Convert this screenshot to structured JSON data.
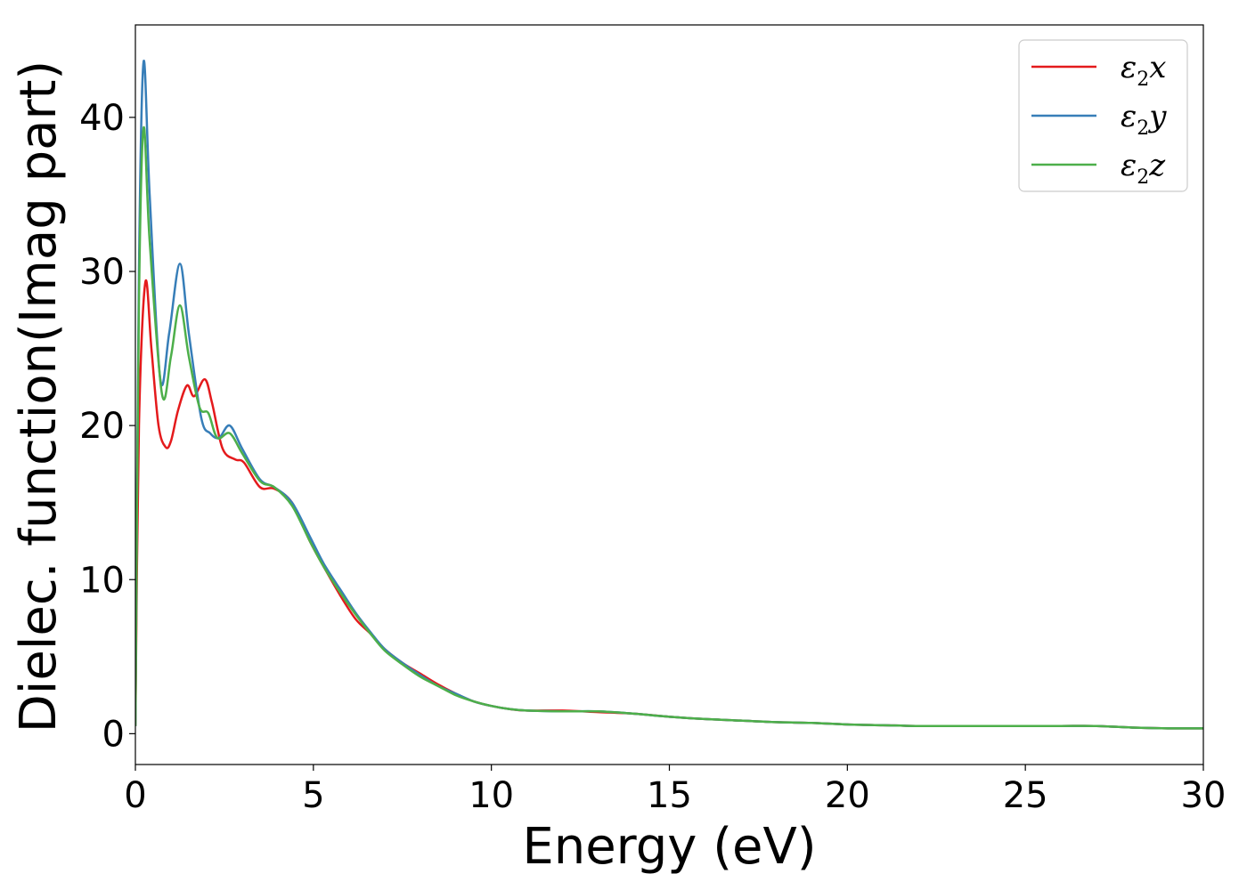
{
  "chart_data": {
    "type": "line",
    "title": "",
    "xlabel": "Energy (eV)",
    "ylabel": "Dielec. function(Imag part)",
    "xlim": [
      0,
      30
    ],
    "ylim": [
      -2,
      46
    ],
    "xticks": [
      0,
      5,
      10,
      15,
      20,
      25,
      30
    ],
    "yticks": [
      0,
      10,
      20,
      30,
      40
    ],
    "xtick_labels": [
      "0",
      "5",
      "10",
      "15",
      "20",
      "25",
      "30"
    ],
    "ytick_labels": [
      "0",
      "10",
      "20",
      "30",
      "40"
    ],
    "grid": false,
    "legend_position": "top-right",
    "series": [
      {
        "name": "ε2x",
        "legend_base": "ε",
        "legend_sub": "2",
        "legend_var": "x",
        "color": "#e41a1c",
        "x": [
          0.0,
          0.1,
          0.28,
          0.45,
          0.65,
          0.85,
          1.0,
          1.2,
          1.45,
          1.65,
          1.95,
          2.15,
          2.45,
          2.8,
          3.05,
          3.5,
          3.9,
          4.4,
          4.9,
          5.3,
          5.8,
          6.2,
          6.6,
          7.0,
          7.5,
          8.0,
          8.5,
          9.0,
          9.5,
          10.0,
          10.5,
          11.0,
          12.0,
          13.0,
          14.0,
          15.0,
          16.0,
          17.0,
          18.0,
          19.0,
          20.0,
          21.0,
          22.0,
          23.0,
          24.0,
          25.0,
          26.0,
          27.0,
          28.0,
          29.0,
          30.0
        ],
        "values": [
          0.5,
          20,
          29.3,
          25.0,
          20.0,
          18.6,
          19.0,
          21.0,
          22.6,
          21.9,
          23.0,
          21.5,
          18.5,
          17.8,
          17.6,
          16.0,
          15.9,
          15.0,
          12.5,
          10.8,
          8.8,
          7.4,
          6.5,
          5.5,
          4.6,
          3.9,
          3.2,
          2.6,
          2.1,
          1.8,
          1.6,
          1.5,
          1.5,
          1.4,
          1.3,
          1.1,
          0.95,
          0.85,
          0.75,
          0.7,
          0.6,
          0.55,
          0.5,
          0.5,
          0.5,
          0.5,
          0.5,
          0.5,
          0.4,
          0.35,
          0.35
        ]
      },
      {
        "name": "ε2y",
        "legend_base": "ε",
        "legend_sub": "2",
        "legend_var": "y",
        "color": "#377eb8",
        "x": [
          0.0,
          0.1,
          0.23,
          0.4,
          0.7,
          0.95,
          1.25,
          1.5,
          1.85,
          2.1,
          2.35,
          2.65,
          3.0,
          3.5,
          3.9,
          4.4,
          4.9,
          5.3,
          5.8,
          6.2,
          6.6,
          7.0,
          7.5,
          8.0,
          8.5,
          9.0,
          9.5,
          10.0,
          10.5,
          11.0,
          12.0,
          13.0,
          14.0,
          15.0,
          16.0,
          17.0,
          18.0,
          19.0,
          20.0,
          21.0,
          22.0,
          23.0,
          24.0,
          25.0,
          26.0,
          27.0,
          28.0,
          29.0,
          30.0
        ],
        "values": [
          0.5,
          30,
          43.6,
          35.0,
          23.0,
          26.0,
          30.5,
          26.0,
          20.5,
          19.5,
          19.2,
          20.0,
          18.5,
          16.5,
          16.0,
          15.0,
          12.8,
          11.0,
          9.2,
          7.8,
          6.6,
          5.5,
          4.6,
          3.8,
          3.1,
          2.6,
          2.1,
          1.8,
          1.6,
          1.5,
          1.45,
          1.45,
          1.3,
          1.1,
          0.95,
          0.85,
          0.75,
          0.7,
          0.6,
          0.55,
          0.5,
          0.5,
          0.5,
          0.5,
          0.5,
          0.5,
          0.4,
          0.35,
          0.35
        ]
      },
      {
        "name": "ε2z",
        "legend_base": "ε",
        "legend_sub": "2",
        "legend_var": "z",
        "color": "#4daf4a",
        "x": [
          0.0,
          0.1,
          0.23,
          0.4,
          0.75,
          1.0,
          1.25,
          1.5,
          1.8,
          2.05,
          2.3,
          2.65,
          3.0,
          3.5,
          3.9,
          4.4,
          4.9,
          5.3,
          5.8,
          6.2,
          6.6,
          7.0,
          7.5,
          8.0,
          8.5,
          9.0,
          9.5,
          10.0,
          10.5,
          11.0,
          12.0,
          13.0,
          14.0,
          15.0,
          16.0,
          17.0,
          18.0,
          19.0,
          20.0,
          21.0,
          22.0,
          23.0,
          24.0,
          25.0,
          26.0,
          27.0,
          28.0,
          29.0,
          30.0
        ],
        "values": [
          0.5,
          28,
          39.3,
          32.0,
          22.0,
          24.5,
          27.8,
          24.5,
          21.2,
          20.8,
          19.2,
          19.5,
          18.2,
          16.4,
          16.0,
          14.8,
          12.5,
          10.8,
          9.0,
          7.7,
          6.5,
          5.4,
          4.5,
          3.7,
          3.1,
          2.5,
          2.1,
          1.8,
          1.6,
          1.5,
          1.45,
          1.45,
          1.3,
          1.1,
          0.95,
          0.85,
          0.75,
          0.7,
          0.6,
          0.55,
          0.5,
          0.5,
          0.5,
          0.5,
          0.5,
          0.5,
          0.4,
          0.35,
          0.35
        ]
      }
    ]
  }
}
